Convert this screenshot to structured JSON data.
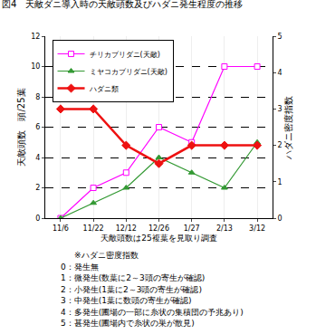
{
  "chart_data": {
    "type": "line",
    "title": "図4　天敵ダニ導入時の天敵頭数及びハダニ発生程度の推移",
    "x_label": "天敵頭数は25複葉を見取り調査",
    "y_label": "天敵頭数　頭/25葉",
    "y2_label": "ハダニ密度指数",
    "categories": [
      "11/6",
      "11/22",
      "12/12",
      "12/26",
      "1/27",
      "2/13",
      "3/12"
    ],
    "series": [
      {
        "name": "チリカブリダニ(天敵)",
        "color": "#ff00ff",
        "marker": "square",
        "line_style": "solid",
        "values": [
          0,
          2,
          3,
          6,
          5,
          10,
          10
        ]
      },
      {
        "name": "ミヤコカブリダニ(天敵)",
        "color": "#339933",
        "marker": "triangle",
        "line_style": "solid",
        "values": [
          0,
          1,
          2,
          4,
          3,
          2,
          5
        ]
      },
      {
        "name": "ハダニ類",
        "color": "#ee1111",
        "marker": "diamond",
        "line_style": "solid",
        "axis": "y2",
        "values": [
          3,
          3,
          2,
          1.5,
          2,
          2,
          2
        ]
      }
    ],
    "ylim": [
      0,
      12
    ],
    "yticks": [
      0,
      2,
      4,
      6,
      8,
      10,
      12
    ],
    "y2lim": [
      0,
      5
    ],
    "y2ticks": [
      0,
      1,
      2,
      3,
      4,
      5
    ],
    "grid": true,
    "legend": "upper left",
    "annotations": [
      "※ハダニ密度指数",
      "0：発生無",
      "1：微発生(数葉に2～3頭の寄生が確認)",
      "2：小発生(1葉に2～3頭の寄生が確認)",
      "3：中発生(1葉に数頭の寄生が確認)",
      "4：多発生(圃場の一部に糸状の集積団の予兆あり)",
      "5：甚発生(圃場内で糸状の巣が散見)"
    ]
  }
}
